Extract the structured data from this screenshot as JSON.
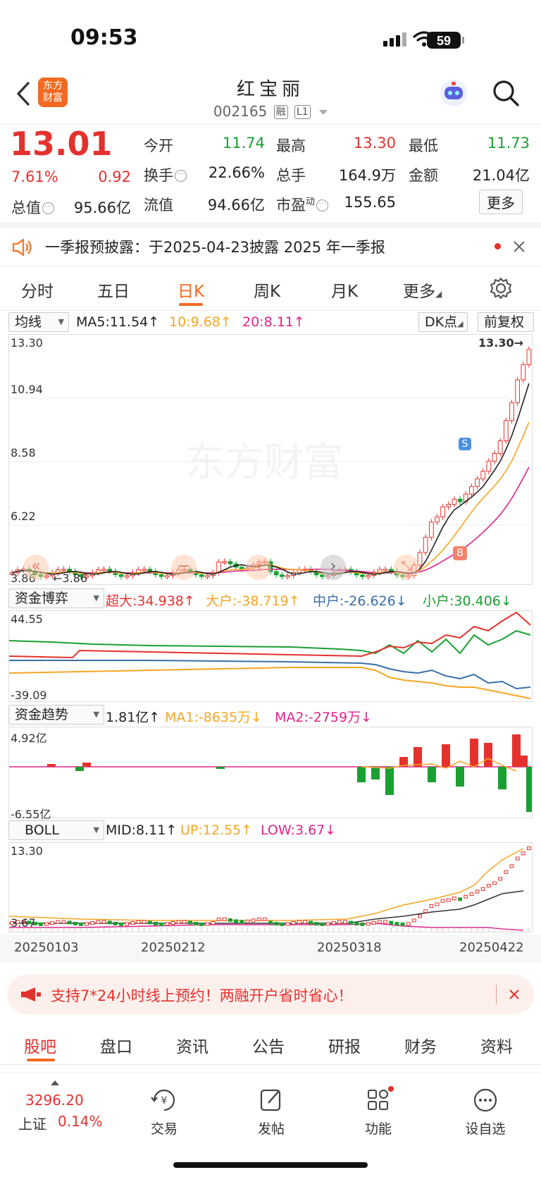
{
  "status_bar": {
    "time": "09:53",
    "battery": "59"
  },
  "header": {
    "back_icon": "chevron-left-icon",
    "logo_text": "东方财富",
    "title": "红宝丽",
    "code": "002165",
    "tags": [
      "融",
      "L1"
    ],
    "avatar_icon": "robot-avatar-icon",
    "search_icon": "search-icon"
  },
  "quote": {
    "price": "13.01",
    "change_pct": "7.61%",
    "change": "0.92",
    "today_open_label": "今开",
    "today_open": "11.74",
    "high_label": "最高",
    "high": "13.30",
    "low_label": "最低",
    "low": "11.73",
    "turnover_label": "换手",
    "turnover": "22.66%",
    "volume_label": "总手",
    "volume": "164.9万",
    "amount_label": "金额",
    "amount": "21.04亿",
    "mktcap_label": "总值",
    "mktcap": "95.66亿",
    "float_label": "流值",
    "float_cap": "94.66亿",
    "pe_label": "市盈",
    "pe_sup": "动",
    "pe": "155.65",
    "more_button": "更多"
  },
  "notice": {
    "text": "一季报预披露：于2025-04-23披露 2025 年一季报"
  },
  "chart_tabs": [
    {
      "label": "分时",
      "active": false
    },
    {
      "label": "五日",
      "active": false
    },
    {
      "label": "日K",
      "active": true
    },
    {
      "label": "周K",
      "active": false
    },
    {
      "label": "月K",
      "active": false
    },
    {
      "label": "更多",
      "active": false
    }
  ],
  "main_chart": {
    "indicator": "均线",
    "ma5": "MA5:11.54↑",
    "ma10": "10:9.68↑",
    "ma20": "20:8.11↑",
    "dk_button": "DK点",
    "adjust_button": "前复权",
    "y_labels": [
      "13.30",
      "10.94",
      "8.58",
      "6.22"
    ],
    "max_label": "13.30→",
    "min_label": "←3.86",
    "min_axis": "3.86"
  },
  "fund_game": {
    "indicator": "资金博弈",
    "super": "超大:34.938↑",
    "big": "大户:-38.719↑",
    "mid": "中户:-26.626↓",
    "small": "小户:30.406↓",
    "y_top": "44.55",
    "y_bottom": "-39.09"
  },
  "fund_trend": {
    "indicator": "资金趋势",
    "value": "1.81亿↑",
    "ma1": "MA1:-8635万↓",
    "ma2": "MA2:-2759万↓",
    "y_top": "4.92亿",
    "y_bottom": "-6.55亿"
  },
  "boll": {
    "indicator": "BOLL",
    "mid": "MID:8.11↑",
    "up": "UP:12.55↑",
    "low": "LOW:3.67↓",
    "y_top": "13.30",
    "y_bottom": "3.67"
  },
  "x_dates": [
    "20250103",
    "20250212",
    "20250318",
    "20250422"
  ],
  "banner": {
    "text": "支持7*24小时线上预约！两融开户省时省心！"
  },
  "bottom_tabs": [
    {
      "label": "股吧",
      "active": true
    },
    {
      "label": "盘口",
      "active": false
    },
    {
      "label": "资讯",
      "active": false
    },
    {
      "label": "公告",
      "active": false
    },
    {
      "label": "研报",
      "active": false
    },
    {
      "label": "财务",
      "active": false
    },
    {
      "label": "资料",
      "active": false
    }
  ],
  "bottom_nav": {
    "index_value": "3296.20",
    "index_name": "上证",
    "index_change": "0.14%",
    "items": [
      {
        "label": "交易",
        "icon": "trade-icon"
      },
      {
        "label": "发帖",
        "icon": "edit-post-icon"
      },
      {
        "label": "功能",
        "icon": "apps-icon"
      },
      {
        "label": "设自选",
        "icon": "add-watchlist-icon"
      }
    ]
  }
}
